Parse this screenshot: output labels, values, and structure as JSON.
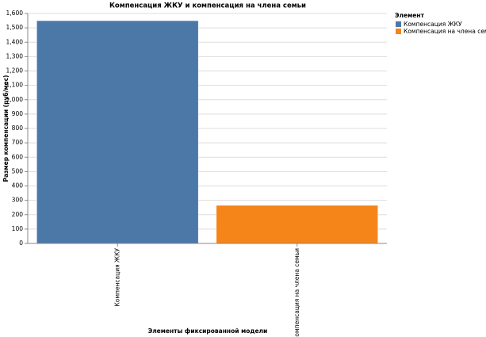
{
  "chart_data": {
    "type": "bar",
    "title": "Компенсация ЖКУ и компенсация на члена семьи",
    "x_label": "Элементы фиксированной модели",
    "y_label": "Размер компенсации (руб/мес)",
    "categories": [
      "Компенсация ЖКУ",
      "Компенсация на члена семьи"
    ],
    "values": [
      1550,
      265
    ],
    "colors": [
      "#4c78a8",
      "#f58518"
    ],
    "legend_title": "Элемент",
    "ylim": [
      0,
      1600
    ],
    "yticks": [
      0,
      100,
      200,
      300,
      400,
      500,
      600,
      700,
      800,
      900,
      {
        "value": 1000,
        "label": "1,000"
      },
      {
        "value": 1100,
        "label": "1,100"
      },
      {
        "value": 1200,
        "label": "1,200"
      },
      {
        "value": 1300,
        "label": "1,300"
      },
      {
        "value": 1400,
        "label": "1,400"
      },
      {
        "value": 1500,
        "label": "1,500"
      },
      {
        "value": 1600,
        "label": "1,600"
      }
    ],
    "grid": true
  }
}
